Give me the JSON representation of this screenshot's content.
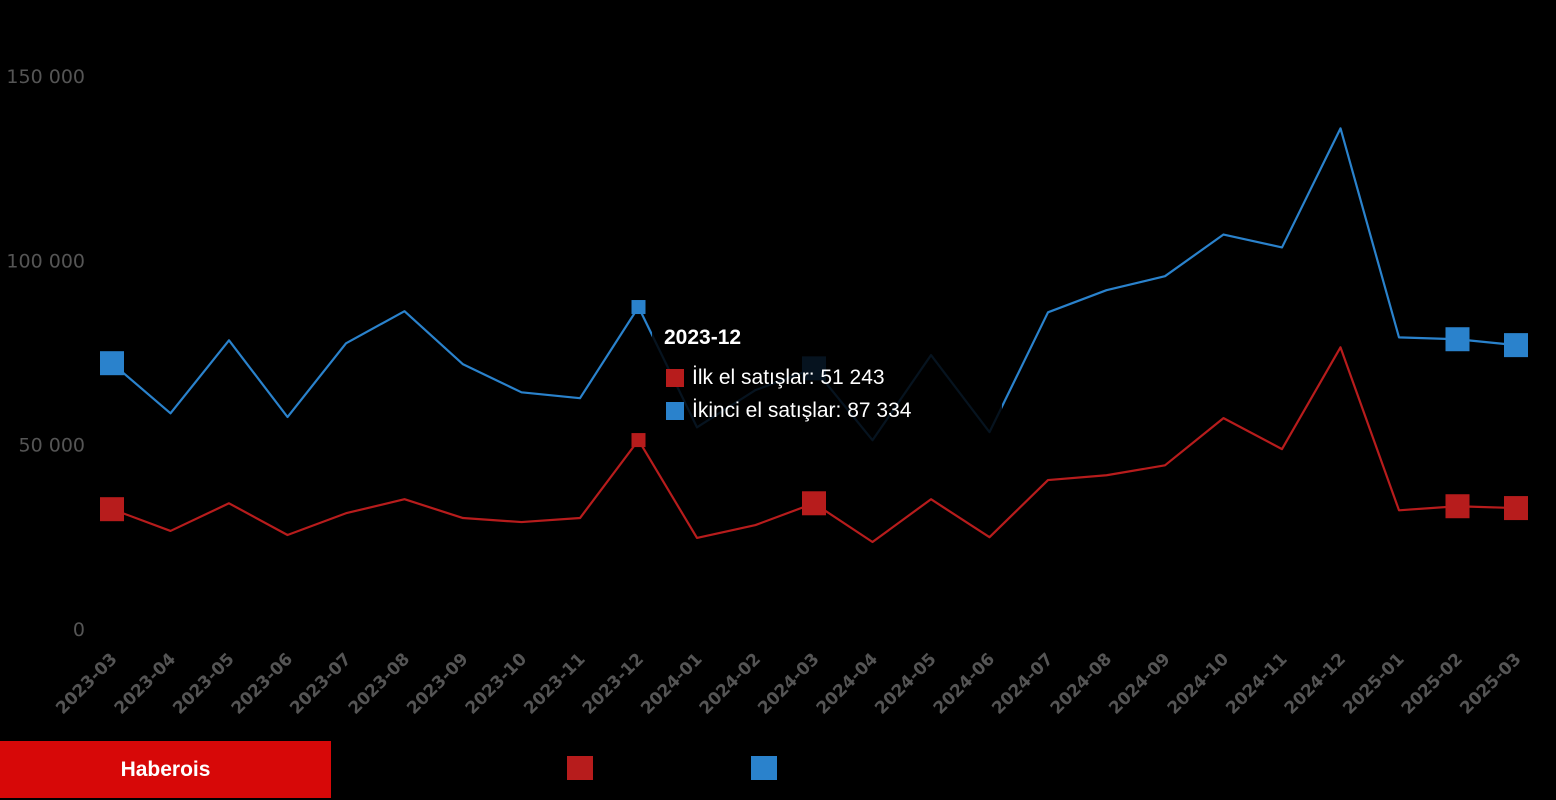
{
  "brand": "Haberois",
  "chart_data": {
    "type": "line",
    "title": "",
    "xlabel": "",
    "ylabel": "",
    "ylim": [
      0,
      150000
    ],
    "yticks": [
      0,
      50000,
      100000,
      150000
    ],
    "ytick_labels": [
      "0",
      "50 000",
      "100 000",
      "150 000"
    ],
    "grid": false,
    "categories": [
      "2023-03",
      "2023-04",
      "2023-05",
      "2023-06",
      "2023-07",
      "2023-08",
      "2023-09",
      "2023-10",
      "2023-11",
      "2023-12",
      "2024-01",
      "2024-02",
      "2024-03",
      "2024-04",
      "2024-05",
      "2024-06",
      "2024-07",
      "2024-08",
      "2024-09",
      "2024-10",
      "2024-11",
      "2024-12",
      "2025-01",
      "2025-02",
      "2025-03"
    ],
    "series": [
      {
        "name": "İlk el satışlar",
        "color": "#b71c1c",
        "values": [
          32500,
          26600,
          34100,
          25500,
          31400,
          35200,
          30100,
          29000,
          30100,
          51243,
          24700,
          28200,
          34100,
          23600,
          35200,
          24900,
          40400,
          41700,
          44400,
          57200,
          48800,
          76400,
          32200,
          33300,
          32800
        ]
      },
      {
        "name": "İkinci el satışlar",
        "color": "#2a82cc",
        "values": [
          72100,
          58500,
          78300,
          57500,
          77500,
          86200,
          71800,
          64200,
          62600,
          87334,
          54700,
          64800,
          70700,
          51200,
          74300,
          53400,
          85900,
          91900,
          95700,
          107000,
          103500,
          135800,
          79100,
          78600,
          77000
        ]
      }
    ],
    "markers_at": [
      "2023-03",
      "2024-03",
      "2025-02",
      "2025-03"
    ],
    "legend": "bottom",
    "tooltip": {
      "title": "2023-12",
      "rows": [
        {
          "label": "İlk el satışlar: 51 243",
          "color": "#b71c1c"
        },
        {
          "label": "İkinci el satışlar: 87 334",
          "color": "#2a82cc"
        }
      ]
    }
  }
}
